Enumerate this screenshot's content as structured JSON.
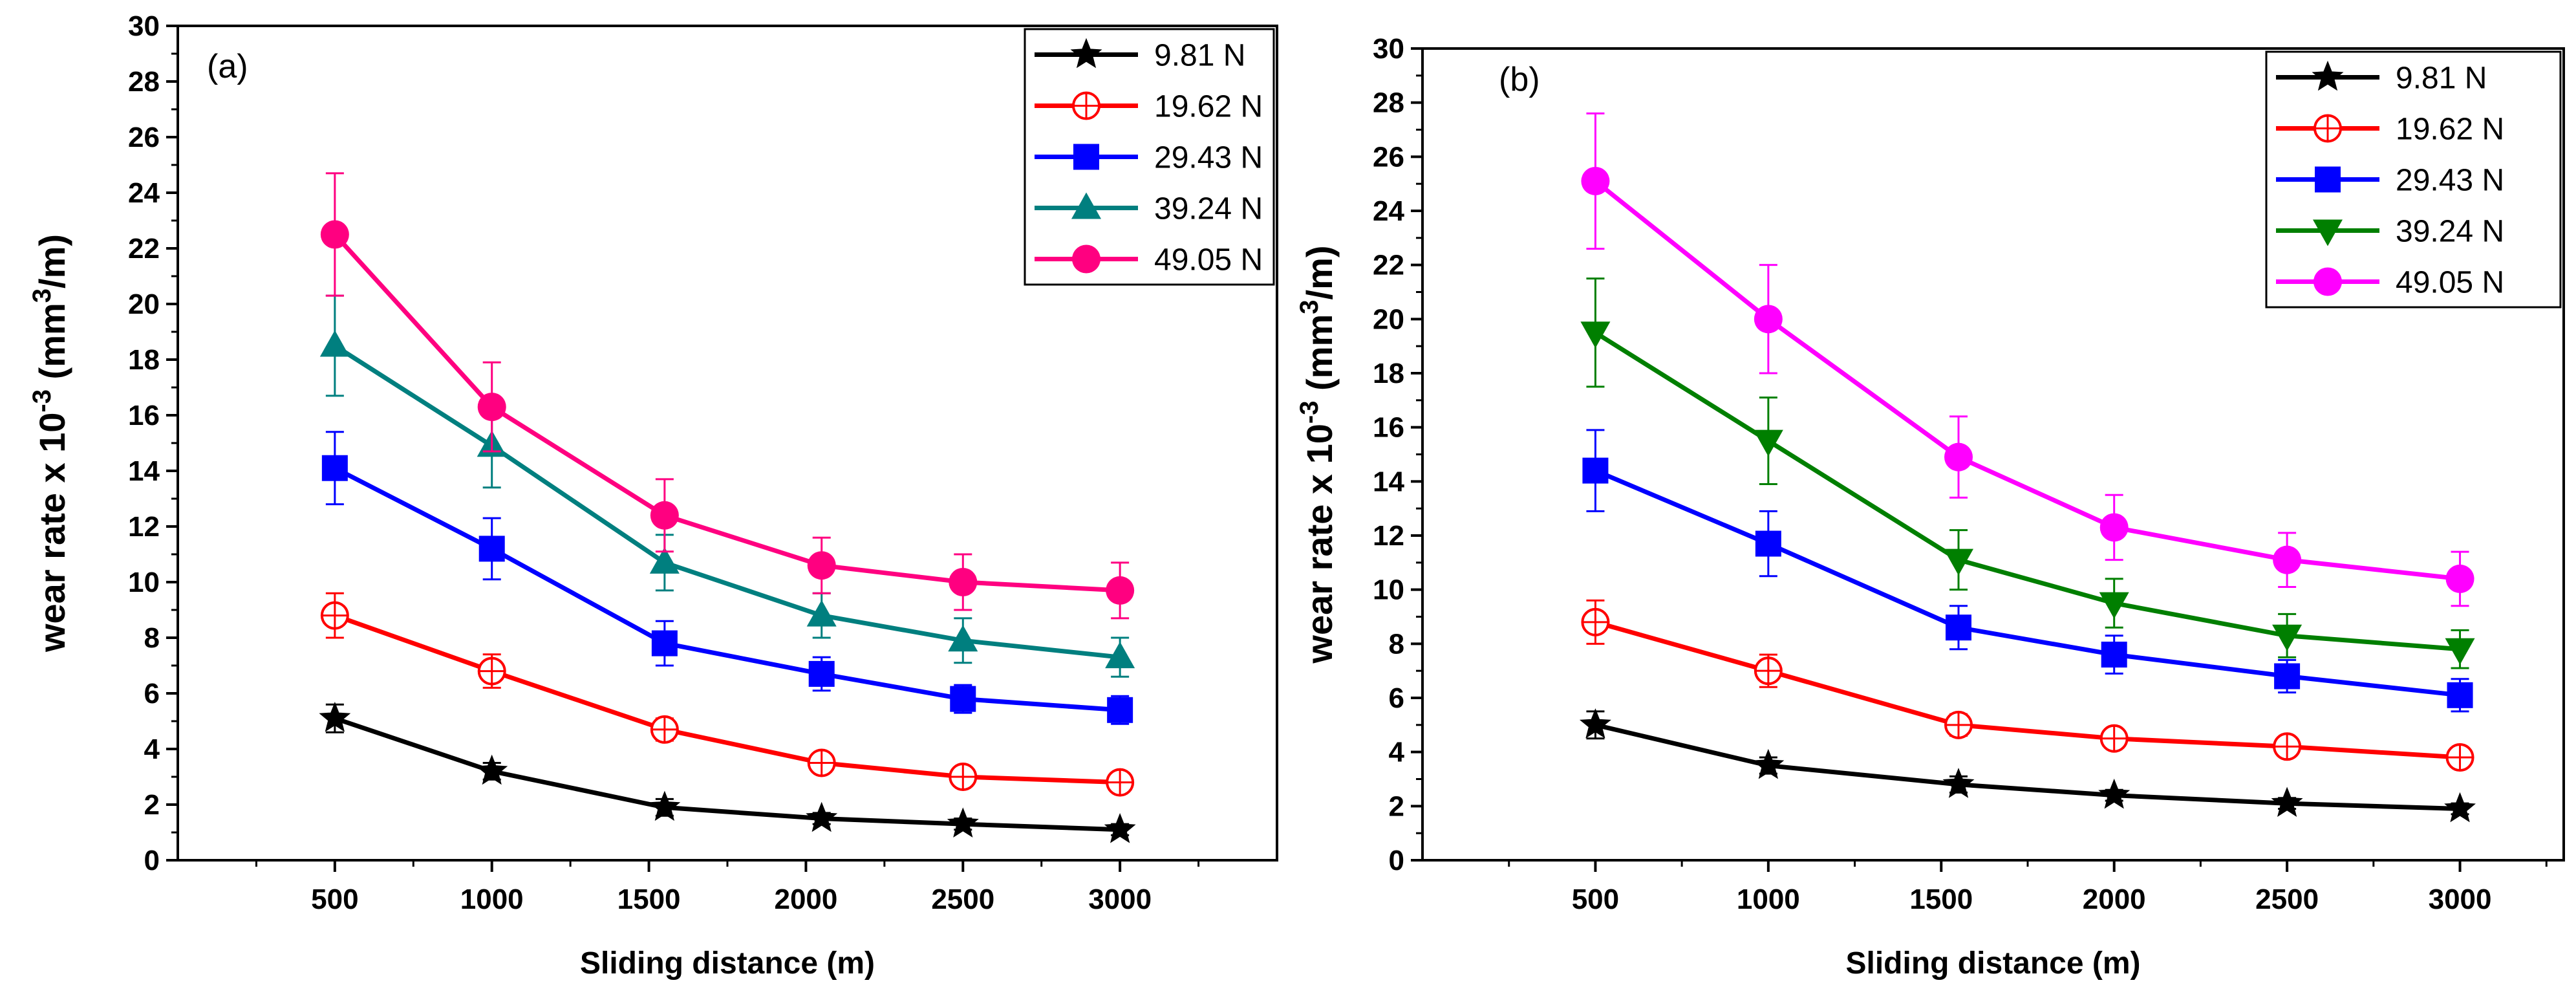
{
  "chart_data": [
    {
      "type": "line",
      "panel_label": "(a)",
      "xlabel": "Sliding distance (m)",
      "ylabel_prefix": "wear rate x 10",
      "ylabel_exp": "-3",
      "ylabel_unit_open": " (mm",
      "ylabel_unit_sup": "3",
      "ylabel_unit_close": "/m)",
      "xlim": [
        0,
        3500
      ],
      "ylim": [
        0,
        30
      ],
      "x_ticks": [
        500,
        1000,
        1500,
        2000,
        2500,
        3000
      ],
      "y_ticks": [
        0,
        2,
        4,
        6,
        8,
        10,
        12,
        14,
        16,
        18,
        20,
        22,
        24,
        26,
        28,
        30
      ],
      "legend_position": "top-right",
      "series": [
        {
          "name": "9.81 N",
          "color": "#000000",
          "marker": "star",
          "x": [
            500,
            1000,
            1550,
            2050,
            2500,
            3000
          ],
          "y": [
            5.1,
            3.2,
            1.9,
            1.5,
            1.3,
            1.1
          ],
          "error": [
            0.5,
            0.3,
            0.3,
            0.2,
            0.2,
            0.2
          ]
        },
        {
          "name": "19.62 N",
          "color": "#ff0000",
          "marker": "circle-open",
          "x": [
            500,
            1000,
            1550,
            2050,
            2500,
            3000
          ],
          "y": [
            8.8,
            6.8,
            4.7,
            3.5,
            3.0,
            2.8
          ],
          "error": [
            0.8,
            0.6,
            0.4,
            0.3,
            0.3,
            0.2
          ]
        },
        {
          "name": "29.43 N",
          "color": "#0000ff",
          "marker": "square",
          "x": [
            500,
            1000,
            1550,
            2050,
            2500,
            3000
          ],
          "y": [
            14.1,
            11.2,
            7.8,
            6.7,
            5.8,
            5.4
          ],
          "error": [
            1.3,
            1.1,
            0.8,
            0.6,
            0.5,
            0.5
          ]
        },
        {
          "name": "39.24 N",
          "color": "#007f7f",
          "marker": "triangle-up",
          "x": [
            500,
            1000,
            1550,
            2050,
            2500,
            3000
          ],
          "y": [
            18.5,
            14.9,
            10.7,
            8.8,
            7.9,
            7.3
          ],
          "error": [
            1.8,
            1.5,
            1.0,
            0.8,
            0.8,
            0.7
          ]
        },
        {
          "name": "49.05 N",
          "color": "#ff0080",
          "marker": "circle",
          "x": [
            500,
            1000,
            1550,
            2050,
            2500,
            3000
          ],
          "y": [
            22.5,
            16.3,
            12.4,
            10.6,
            10.0,
            9.7
          ],
          "error": [
            2.2,
            1.6,
            1.3,
            1.0,
            1.0,
            1.0
          ]
        }
      ]
    },
    {
      "type": "line",
      "panel_label": "(b)",
      "xlabel": "Sliding distance (m)",
      "ylabel_prefix": "wear rate x 10",
      "ylabel_exp": "-3",
      "ylabel_unit_open": " (mm",
      "ylabel_unit_sup": "3",
      "ylabel_unit_close": "/m)",
      "xlim": [
        0,
        3300
      ],
      "ylim": [
        0,
        30
      ],
      "x_ticks": [
        500,
        1000,
        1500,
        2000,
        2500,
        3000
      ],
      "y_ticks": [
        0,
        2,
        4,
        6,
        8,
        10,
        12,
        14,
        16,
        18,
        20,
        22,
        24,
        26,
        28,
        30
      ],
      "legend_position": "top-right",
      "series": [
        {
          "name": "9.81 N",
          "color": "#000000",
          "marker": "star",
          "x": [
            500,
            1000,
            1550,
            2000,
            2500,
            3000
          ],
          "y": [
            5.0,
            3.5,
            2.8,
            2.4,
            2.1,
            1.9
          ],
          "error": [
            0.5,
            0.3,
            0.3,
            0.2,
            0.2,
            0.2
          ]
        },
        {
          "name": "19.62 N",
          "color": "#ff0000",
          "marker": "circle-open",
          "x": [
            500,
            1000,
            1550,
            2000,
            2500,
            3000
          ],
          "y": [
            8.8,
            7.0,
            5.0,
            4.5,
            4.2,
            3.8
          ],
          "error": [
            0.8,
            0.6,
            0.4,
            0.3,
            0.3,
            0.2
          ]
        },
        {
          "name": "29.43 N",
          "color": "#0000ff",
          "marker": "square",
          "x": [
            500,
            1000,
            1550,
            2000,
            2500,
            3000
          ],
          "y": [
            14.4,
            11.7,
            8.6,
            7.6,
            6.8,
            6.1
          ],
          "error": [
            1.5,
            1.2,
            0.8,
            0.7,
            0.6,
            0.6
          ]
        },
        {
          "name": "39.24 N",
          "color": "#007f00",
          "marker": "triangle-down",
          "x": [
            500,
            1000,
            1550,
            2000,
            2500,
            3000
          ],
          "y": [
            19.5,
            15.5,
            11.1,
            9.5,
            8.3,
            7.8
          ],
          "error": [
            2.0,
            1.6,
            1.1,
            0.9,
            0.8,
            0.7
          ]
        },
        {
          "name": "49.05 N",
          "color": "#ff00ff",
          "marker": "circle",
          "x": [
            500,
            1000,
            1550,
            2000,
            2500,
            3000
          ],
          "y": [
            25.1,
            20.0,
            14.9,
            12.3,
            11.1,
            10.4
          ],
          "error": [
            2.5,
            2.0,
            1.5,
            1.2,
            1.0,
            1.0
          ]
        }
      ]
    }
  ]
}
